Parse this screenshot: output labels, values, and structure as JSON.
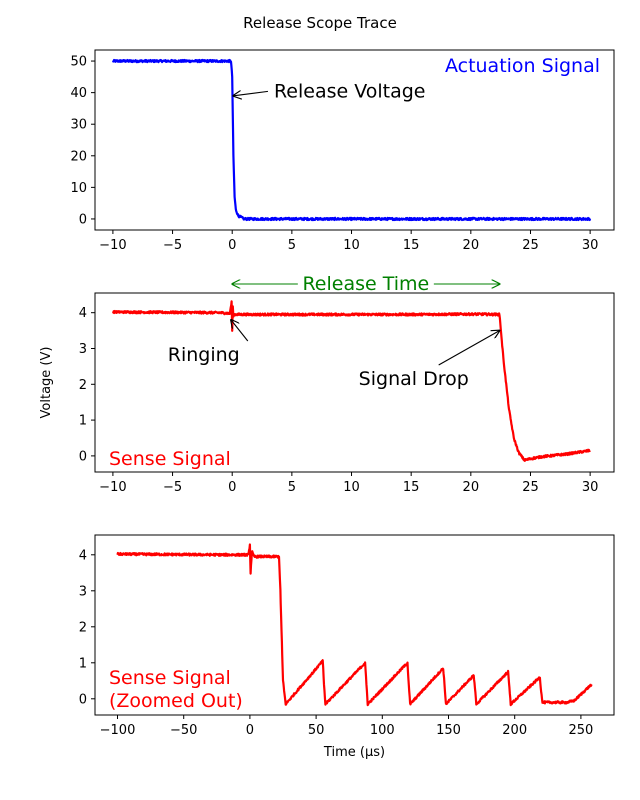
{
  "figure_title": "Release Scope Trace",
  "chart_data": [
    {
      "id": "actuation",
      "type": "line",
      "title": "",
      "series_label": "Actuation Signal",
      "color": "#0000ff",
      "xlabel": "",
      "ylabel": "",
      "xlim": [
        -11.5,
        32
      ],
      "ylim": [
        -3.5,
        53.5
      ],
      "xticks": [
        -10,
        -5,
        0,
        5,
        10,
        15,
        20,
        25,
        30
      ],
      "yticks": [
        0,
        10,
        20,
        30,
        40,
        50
      ],
      "x": [
        -10,
        -5,
        -0.1,
        0,
        0.1,
        0.2,
        0.3,
        0.5,
        1,
        5,
        10,
        15,
        20,
        25,
        30
      ],
      "y": [
        50,
        50,
        50,
        45,
        20,
        7,
        3,
        1,
        0,
        0,
        0,
        0,
        0,
        0,
        0
      ],
      "noise": 0.35,
      "annotations": [
        {
          "text": "Release Voltage",
          "color": "#000000",
          "text_x": 3.5,
          "text_y": 38.5,
          "arrow_to": [
            0.1,
            39
          ]
        }
      ]
    },
    {
      "id": "sense",
      "type": "line",
      "title": "",
      "series_label": "Sense Signal",
      "color": "#ff0000",
      "xlabel": "",
      "ylabel": "Voltage (V)",
      "xlim": [
        -11.5,
        32
      ],
      "ylim": [
        -0.45,
        4.55
      ],
      "xticks": [
        -10,
        -5,
        0,
        5,
        10,
        15,
        20,
        25,
        30
      ],
      "yticks": [
        0,
        1,
        2,
        3,
        4
      ],
      "x": [
        -10,
        -1,
        -0.2,
        -0.05,
        0,
        0.05,
        0.1,
        0.2,
        0.5,
        5,
        10,
        15,
        20,
        22.4,
        22.6,
        22.8,
        23.2,
        23.6,
        24,
        24.5,
        25,
        26,
        28,
        30
      ],
      "y": [
        4.02,
        4.0,
        3.98,
        4.3,
        3.5,
        4.15,
        3.92,
        3.95,
        3.95,
        3.95,
        3.95,
        3.95,
        3.96,
        3.95,
        3.2,
        2.5,
        1.3,
        0.5,
        0.1,
        -0.12,
        -0.08,
        -0.02,
        0.05,
        0.15
      ],
      "noise": 0.03,
      "annotations": [
        {
          "text": "Ringing",
          "color": "#000000",
          "text_x": -5.4,
          "text_y": 2.65,
          "arrow_to": [
            -0.1,
            3.8
          ]
        },
        {
          "text": "Signal Drop",
          "color": "#000000",
          "text_x": 10.6,
          "text_y": 1.98,
          "arrow_to": [
            22.4,
            3.5
          ]
        }
      ],
      "range_annotation": {
        "text": "Release Time",
        "color": "#008000",
        "from": 0,
        "to": 22.4
      }
    },
    {
      "id": "sense_zoomed_out",
      "type": "line",
      "title": "",
      "series_label": "Sense Signal\n(Zoomed Out)",
      "color": "#ff0000",
      "xlabel": "Time (μs)",
      "ylabel": "",
      "xlim": [
        -117,
        275
      ],
      "ylim": [
        -0.45,
        4.55
      ],
      "xticks": [
        -100,
        -50,
        0,
        50,
        100,
        150,
        200,
        250
      ],
      "yticks": [
        0,
        1,
        2,
        3,
        4
      ],
      "x": [
        -100,
        -20,
        -1,
        0,
        0.5,
        1.5,
        3,
        20,
        22,
        23,
        25,
        27,
        55,
        56,
        57,
        87,
        88,
        89,
        119,
        120,
        121,
        146,
        147,
        148,
        169,
        170,
        171,
        195,
        196,
        197,
        219,
        220,
        221,
        240,
        245,
        258
      ],
      "y": [
        4.02,
        4.0,
        4.0,
        4.3,
        3.5,
        4.1,
        3.95,
        3.95,
        3.95,
        3.0,
        0.5,
        -0.15,
        1.05,
        0.4,
        -0.15,
        1.0,
        0.4,
        -0.15,
        1.0,
        0.4,
        -0.15,
        0.85,
        0.4,
        -0.15,
        0.65,
        0.3,
        -0.15,
        0.75,
        0.3,
        -0.15,
        0.6,
        0.2,
        -0.1,
        -0.1,
        -0.05,
        0.4
      ],
      "noise": 0.03,
      "annotations": []
    }
  ]
}
